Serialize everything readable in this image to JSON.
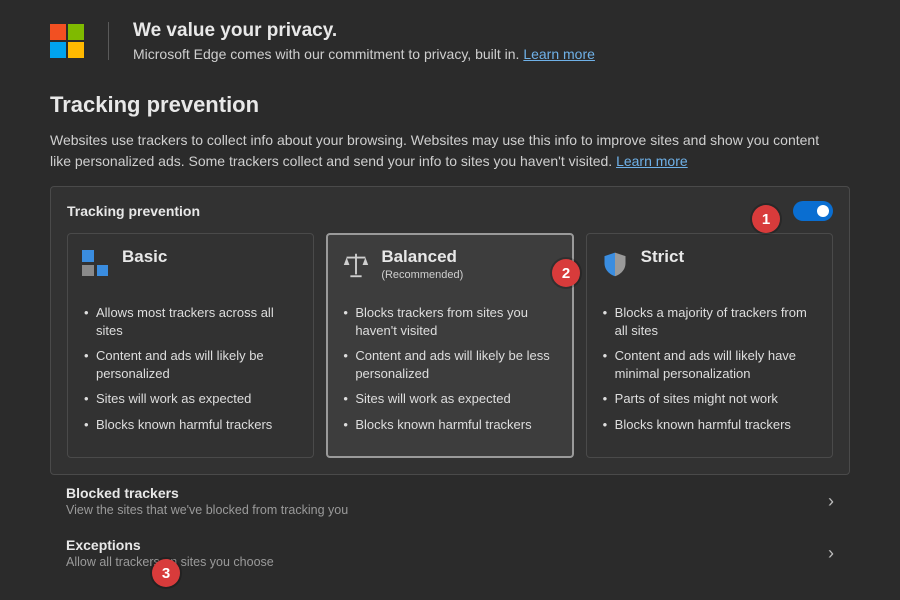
{
  "colors": {
    "background": "#2b2b2b",
    "panel_bg": "#323232",
    "panel_border": "#4a4a4a",
    "card_selected_bg": "#3d3d3d",
    "card_selected_border": "#9a9a9a",
    "text_primary": "#e8e8e8",
    "text_secondary": "#cfcfcf",
    "text_muted": "#9a9a9a",
    "link": "#6fb1e8",
    "toggle_on": "#0a6ed1",
    "marker_bg": "#d83b3b",
    "ms_logo": {
      "tl": "#f25022",
      "tr": "#7fba00",
      "bl": "#00a4ef",
      "br": "#ffb900"
    },
    "shield_left": "#3a8de0",
    "shield_right": "#9a9a9a",
    "scales": "#cfcfcf"
  },
  "header": {
    "title": "We value your privacy.",
    "subtitle_prefix": "Microsoft Edge comes with our commitment to privacy, built in. ",
    "learn_more": "Learn more"
  },
  "tracking": {
    "section_title": "Tracking prevention",
    "description_prefix": "Websites use trackers to collect info about your browsing. Websites may use this info to improve sites and show you content like personalized ads. Some trackers collect and send your info to sites you haven't visited. ",
    "learn_more": "Learn more",
    "panel_label": "Tracking prevention",
    "toggle_on": true,
    "selected_card_index": 1,
    "cards": [
      {
        "title": "Basic",
        "subtitle": "",
        "bullets": [
          "Allows most trackers across all sites",
          "Content and ads will likely be personalized",
          "Sites will work as expected",
          "Blocks known harmful trackers"
        ]
      },
      {
        "title": "Balanced",
        "subtitle": "(Recommended)",
        "bullets": [
          "Blocks trackers from sites you haven't visited",
          "Content and ads will likely be less personalized",
          "Sites will work as expected",
          "Blocks known harmful trackers"
        ]
      },
      {
        "title": "Strict",
        "subtitle": "",
        "bullets": [
          "Blocks a majority of trackers from all sites",
          "Content and ads will likely have minimal personalization",
          "Parts of sites might not work",
          "Blocks known harmful trackers"
        ]
      }
    ]
  },
  "rows": {
    "blocked": {
      "title": "Blocked trackers",
      "subtitle": "View the sites that we've blocked from tracking you"
    },
    "exceptions": {
      "title": "Exceptions",
      "subtitle": "Allow all trackers on sites you choose"
    }
  },
  "markers": {
    "m1": "1",
    "m2": "2",
    "m3": "3"
  },
  "chevron_glyph": "›"
}
